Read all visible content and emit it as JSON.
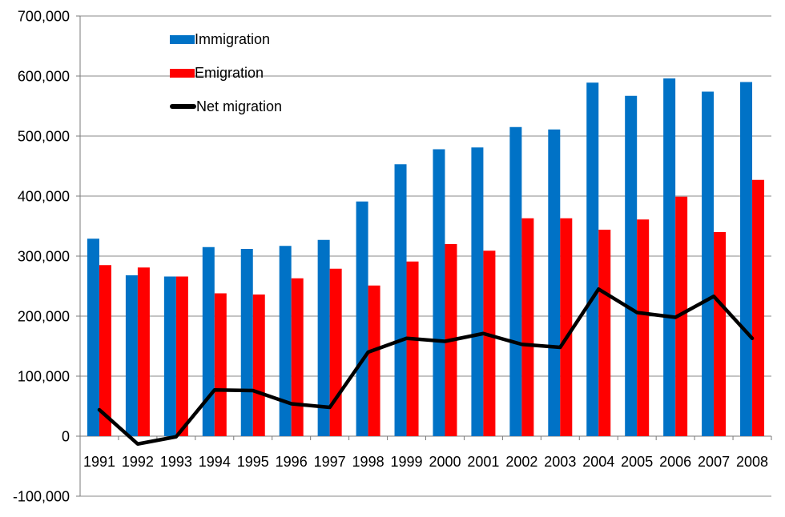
{
  "chart_data": {
    "type": "bar",
    "subtype": "grouped-bars-with-line",
    "title": "",
    "categories": [
      "1991",
      "1992",
      "1993",
      "1994",
      "1995",
      "1996",
      "1997",
      "1998",
      "1999",
      "2000",
      "2001",
      "2002",
      "2003",
      "2004",
      "2005",
      "2006",
      "2007",
      "2008"
    ],
    "series": [
      {
        "name": "Immigration",
        "type": "bar",
        "color": "#0072C6",
        "values": [
          329000,
          268000,
          266000,
          315000,
          312000,
          317000,
          327000,
          391000,
          453000,
          478000,
          481000,
          515000,
          511000,
          589000,
          567000,
          596000,
          574000,
          590000
        ]
      },
      {
        "name": "Emigration",
        "type": "bar",
        "color": "#FF0000",
        "values": [
          285000,
          281000,
          266000,
          238000,
          236000,
          263000,
          279000,
          251000,
          291000,
          320000,
          309000,
          363000,
          363000,
          344000,
          361000,
          399000,
          340000,
          427000
        ]
      },
      {
        "name": "Net migration",
        "type": "line",
        "color": "#000000",
        "values": [
          44000,
          -13000,
          -1000,
          77000,
          76000,
          54000,
          48000,
          140000,
          163000,
          158000,
          171000,
          153000,
          148000,
          245000,
          206000,
          198000,
          233000,
          163000
        ]
      }
    ],
    "xlabel": "",
    "ylabel": "",
    "ylim": [
      -100000,
      700000
    ],
    "ytick_step": 100000,
    "y_tick_labels": [
      "-100,000",
      "0",
      "100,000",
      "200,000",
      "300,000",
      "400,000",
      "500,000",
      "600,000",
      "700,000"
    ],
    "grid": true,
    "legend_position": "inside-top-left",
    "colors": {
      "background": "#FFFFFF",
      "gridline": "#8A8A8A",
      "axis": "#7A7A7A",
      "text": "#000000"
    }
  }
}
